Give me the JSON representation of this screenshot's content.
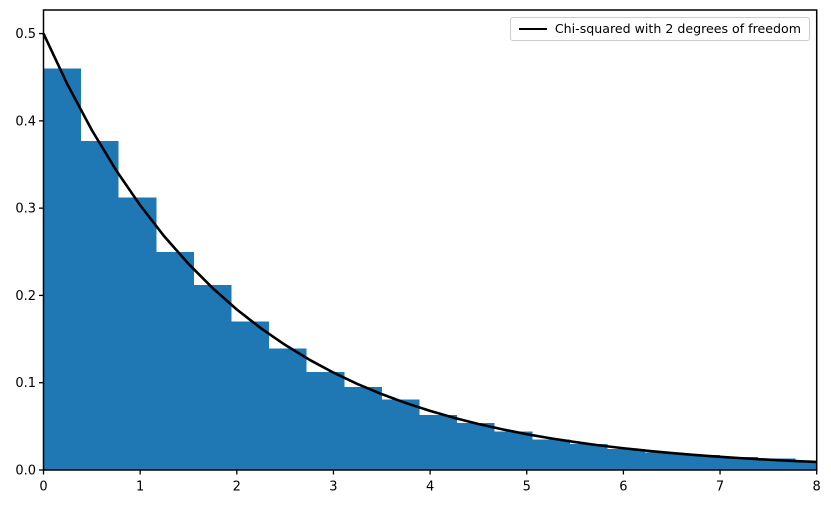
{
  "figure": {
    "background": "#ffffff",
    "plot_background": "#ffffff"
  },
  "chart_data": {
    "type": "bar",
    "subtype": "histogram-with-line-overlay",
    "title": "",
    "xlabel": "",
    "ylabel": "",
    "xlim": [
      0,
      8
    ],
    "ylim": [
      0,
      0.527
    ],
    "grid": false,
    "axis_color": "#000000",
    "tick_label_color": "#000000",
    "xticks": [
      {
        "value": 0,
        "label": "0"
      },
      {
        "value": 1,
        "label": "1"
      },
      {
        "value": 2,
        "label": "2"
      },
      {
        "value": 3,
        "label": "3"
      },
      {
        "value": 4,
        "label": "4"
      },
      {
        "value": 5,
        "label": "5"
      },
      {
        "value": 6,
        "label": "6"
      },
      {
        "value": 7,
        "label": "7"
      },
      {
        "value": 8,
        "label": "8"
      }
    ],
    "yticks": [
      {
        "value": 0.0,
        "label": "0.0"
      },
      {
        "value": 0.1,
        "label": "0.1"
      },
      {
        "value": 0.2,
        "label": "0.2"
      },
      {
        "value": 0.3,
        "label": "0.3"
      },
      {
        "value": 0.4,
        "label": "0.4"
      },
      {
        "value": 0.5,
        "label": "0.5"
      }
    ],
    "histogram": {
      "color": "#1f77b4",
      "bin_edges": [
        0.0,
        0.389,
        0.778,
        1.167,
        1.556,
        1.945,
        2.334,
        2.723,
        3.112,
        3.501,
        3.89,
        4.279,
        4.668,
        5.057,
        5.446,
        5.835,
        6.224,
        6.613,
        7.002,
        7.391,
        7.78,
        8.169
      ],
      "densities": [
        0.46,
        0.377,
        0.312,
        0.25,
        0.212,
        0.17,
        0.139,
        0.112,
        0.095,
        0.081,
        0.063,
        0.054,
        0.044,
        0.035,
        0.03,
        0.024,
        0.02,
        0.017,
        0.015,
        0.013,
        0.011
      ]
    },
    "curve": {
      "color": "#000000",
      "linewidth": 2.6,
      "formula": "0.5 * exp(-x/2)",
      "points": [
        [
          0.0,
          0.5
        ],
        [
          0.25,
          0.4412
        ],
        [
          0.5,
          0.3894
        ],
        [
          0.75,
          0.3436
        ],
        [
          1.0,
          0.3033
        ],
        [
          1.25,
          0.2676
        ],
        [
          1.5,
          0.2362
        ],
        [
          1.75,
          0.2084
        ],
        [
          2.0,
          0.1839
        ],
        [
          2.25,
          0.1623
        ],
        [
          2.5,
          0.1433
        ],
        [
          2.75,
          0.1264
        ],
        [
          3.0,
          0.1116
        ],
        [
          3.25,
          0.0984
        ],
        [
          3.5,
          0.0869
        ],
        [
          3.75,
          0.0767
        ],
        [
          4.0,
          0.0677
        ],
        [
          4.25,
          0.0597
        ],
        [
          4.5,
          0.0527
        ],
        [
          4.75,
          0.0465
        ],
        [
          5.0,
          0.041
        ],
        [
          5.25,
          0.0362
        ],
        [
          5.5,
          0.032
        ],
        [
          5.75,
          0.0282
        ],
        [
          6.0,
          0.0249
        ],
        [
          6.25,
          0.022
        ],
        [
          6.5,
          0.0194
        ],
        [
          6.75,
          0.0171
        ],
        [
          7.0,
          0.0151
        ],
        [
          7.25,
          0.0133
        ],
        [
          7.5,
          0.0118
        ],
        [
          7.75,
          0.0104
        ],
        [
          8.0,
          0.0092
        ]
      ]
    },
    "legend": {
      "location": "upper right",
      "entries": [
        {
          "label": "Chi-squared with 2 degrees of freedom",
          "line_color": "#000000"
        }
      ]
    }
  }
}
